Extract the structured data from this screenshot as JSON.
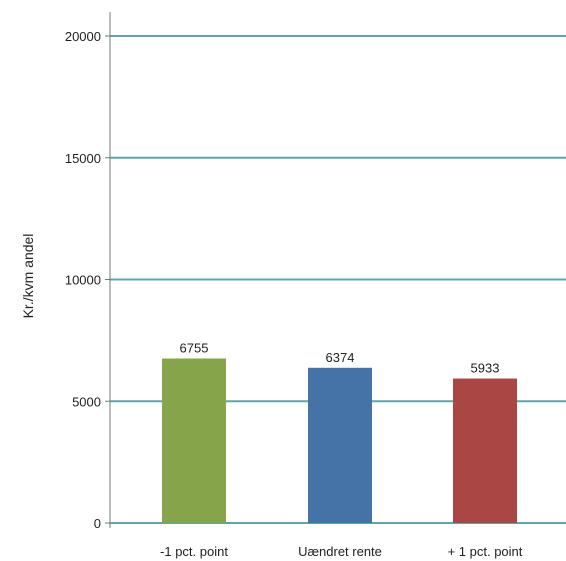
{
  "chart_data": {
    "type": "bar",
    "title": "",
    "xlabel": "",
    "ylabel": "Kr./kvm andel",
    "categories": [
      "-1 pct. point",
      "Uændret rente",
      "+ 1 pct. point"
    ],
    "values": [
      6755,
      6374,
      5933
    ],
    "data_labels": [
      "6755",
      "6374",
      "5933"
    ],
    "colors": [
      "#86a44a",
      "#4572a7",
      "#aa4643"
    ],
    "gridline_color": "#5fa5a8",
    "ylim": [
      0,
      20000
    ],
    "yticks": [
      0,
      5000,
      10000,
      15000,
      20000
    ],
    "ytick_labels": [
      "0",
      "5000",
      "10000",
      "15000",
      "20000"
    ],
    "grid": true,
    "legend": "none"
  }
}
